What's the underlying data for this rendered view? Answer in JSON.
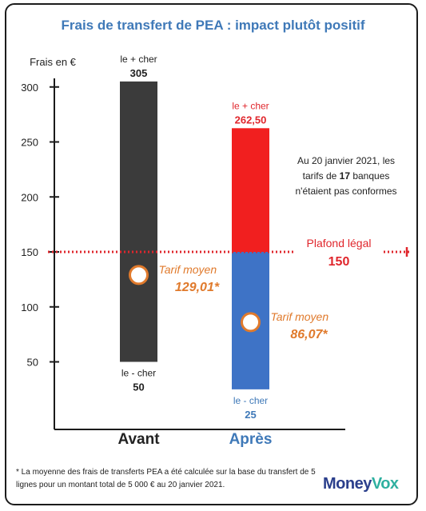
{
  "title": "Frais de transfert de PEA : impact plutôt positif",
  "colors": {
    "title": "#3f79b8",
    "bar_avant": "#3b3b3b",
    "bar_apres_high": "#f11f1f",
    "bar_apres_low": "#3e73c6",
    "accent_red": "#e0262c",
    "accent_orange": "#e07a2c",
    "apres_label": "#3f79b8"
  },
  "chart_data": {
    "type": "bar",
    "title": "Frais de transfert de PEA : impact plutôt positif",
    "ylabel": "Frais en €",
    "ylim": [
      25,
      310
    ],
    "yticks": [
      50,
      100,
      150,
      200,
      250,
      300
    ],
    "categories": [
      "Avant",
      "Après"
    ],
    "bars": [
      {
        "category": "Avant",
        "min": 50,
        "max": 305,
        "min_value_label": "50",
        "max_value_label": "305",
        "min_caption": "le - cher",
        "max_caption": "le + cher",
        "average": 129.01,
        "average_caption": "Tarif moyen",
        "average_label": "129,01*"
      },
      {
        "category": "Après",
        "min": 25,
        "max": 262.5,
        "min_value_label": "25",
        "max_value_label": "262,50",
        "min_caption": "le - cher",
        "max_caption": "le + cher",
        "average": 86.07,
        "average_caption": "Tarif moyen",
        "average_label": "86,07*",
        "split_at": 150
      }
    ],
    "reference_line": {
      "value": 150,
      "label": "Plafond légal",
      "value_label": "150"
    },
    "annotation": {
      "line1": "Au 20 janvier 2021, les",
      "line2_prefix": "tarifs de ",
      "line2_bold": "17",
      "line2_suffix": " banques",
      "line3": "n'étaient pas conformes"
    }
  },
  "footnote": "* La moyenne des frais de transferts PEA a été calculée sur la base du transfert de 5 lignes pour un montant total de 5 000 € au 20 janvier 2021.",
  "logo": {
    "part1": "Money",
    "part2": "Vox"
  }
}
